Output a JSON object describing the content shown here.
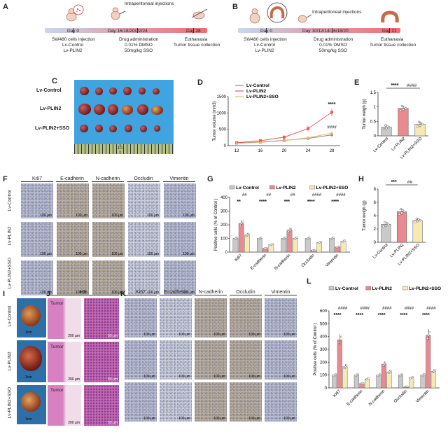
{
  "panels": {
    "A": "A",
    "B": "B",
    "C": "C",
    "D": "D",
    "E": "E",
    "F": "F",
    "G": "G",
    "H": "H",
    "I": "I",
    "J": "J",
    "K": "K",
    "L": "L"
  },
  "timelineA": {
    "injection_label": "Intraperitoneal injections",
    "days": [
      "Day 0",
      "Day 16/18/20/22/24",
      "Day 28"
    ],
    "notes": [
      [
        "SW480 cells injection",
        "Lv-Control",
        "Lv-PLIN2"
      ],
      [
        "Drug administration",
        "0.01% DMSO",
        "50mg/kg SSO"
      ],
      [
        "Euthanasia",
        "Tumor tissue collection"
      ]
    ],
    "colors": [
      "#c7d7ef",
      "#ef6c70"
    ]
  },
  "timelineB": {
    "injection_label": "Intraperitoneal injections",
    "days": [
      "Day 0",
      "Day 10/12/14/16/18/20",
      "Day 21"
    ],
    "notes": [
      [
        "SW480 cells injection",
        "Lv-Control",
        "Lv-PLIN2"
      ],
      [
        "Drug administration",
        "0.01% DMSO",
        "50mg/kg SSO"
      ],
      [
        "Euthanasia",
        "Tumor tissue collection"
      ]
    ]
  },
  "groups": [
    "Lv-Control",
    "Lv-PLIN2",
    "Lv-PLIN2+SSO"
  ],
  "group_colors": [
    "#c9c9c9",
    "#e88a8f",
    "#f6e9b3"
  ],
  "photoC": {
    "rows": [
      "Lv-Control",
      "Lv-PLIN2",
      "Lv-PLIN2+SSO"
    ],
    "ruler_number": "10"
  },
  "markers": [
    "Ki67",
    "E-cadherin",
    "N-cadherin",
    "Occludin",
    "Vimentin"
  ],
  "panelF": {
    "scale": "100 μm"
  },
  "panelI": {
    "scale": "1cm"
  },
  "panelJ": {
    "title": "HE",
    "tumor_label": "Tumor",
    "scale_left": "200 μm",
    "scale_right": "50 μm"
  },
  "panelK": {
    "scale": "100 μm"
  },
  "chart_data": [
    {
      "panel": "D",
      "type": "line",
      "x": [
        12,
        16,
        20,
        24,
        28
      ],
      "ylabel": "Tumor volume (mm3)",
      "ylim": [
        0,
        1500
      ],
      "yticks": [
        0,
        500,
        1000,
        1500
      ],
      "series": [
        {
          "name": "Lv-Control",
          "values": [
            80,
            110,
            160,
            220,
            330
          ],
          "err": [
            15,
            20,
            25,
            35,
            45
          ],
          "color": "#8a8a8a",
          "marker": "circle"
        },
        {
          "name": "Lv-PLIN2",
          "values": [
            90,
            150,
            260,
            520,
            1020
          ],
          "err": [
            20,
            30,
            50,
            90,
            120
          ],
          "color": "#e8575c",
          "marker": "square"
        },
        {
          "name": "Lv-PLIN2+SSO",
          "values": [
            70,
            100,
            150,
            240,
            380
          ],
          "err": [
            15,
            20,
            30,
            40,
            50
          ],
          "color": "#e5b86b",
          "marker": "triangle"
        }
      ],
      "annotations": [
        "****",
        "####"
      ],
      "legend": "top-left"
    },
    {
      "panel": "E",
      "type": "bar",
      "categories": [
        "Lv-Control",
        "Lv-PLIN2",
        "Lv-PLIN2+SSO"
      ],
      "values": [
        0.3,
        0.95,
        0.4
      ],
      "err": [
        0.08,
        0.1,
        0.1
      ],
      "ylabel": "Tumor weigh (g)",
      "ylim": [
        0,
        1.5
      ],
      "yticks": [
        0.0,
        0.5,
        1.0,
        1.5
      ],
      "annotations": [
        "****",
        "####"
      ]
    },
    {
      "panel": "G",
      "type": "bar",
      "categories": [
        "Ki67",
        "E-cadherin",
        "N-cadherin",
        "Occludin",
        "Vimentin"
      ],
      "ylabel": "Positive cells (% of Control )",
      "ylim": [
        0,
        400
      ],
      "yticks": [
        0,
        100,
        200,
        300,
        400
      ],
      "series": [
        {
          "name": "Lv-Control",
          "values": [
            100,
            100,
            100,
            100,
            100
          ]
        },
        {
          "name": "Lv-PLIN2",
          "values": [
            210,
            28,
            160,
            14,
            38
          ]
        },
        {
          "name": "Lv-PLIN2+SSO",
          "values": [
            125,
            55,
            100,
            70,
            80
          ]
        }
      ],
      "annotations_top": [
        "##",
        "##",
        "##",
        "####",
        "####"
      ],
      "annotations_bottom": [
        "**",
        "****",
        "***",
        "****",
        "****"
      ],
      "legend": "top"
    },
    {
      "panel": "H",
      "type": "bar",
      "categories": [
        "Lv-Control",
        "Lv-PLIN2",
        "Lv-PLIN2+SSO"
      ],
      "values": [
        2.7,
        4.6,
        3.3
      ],
      "err": [
        0.4,
        0.5,
        0.3
      ],
      "ylabel": "Tumor weigh (g)",
      "ylim": [
        0,
        8
      ],
      "yticks": [
        0,
        2,
        4,
        6,
        8
      ],
      "annotations": [
        "***",
        "##"
      ]
    },
    {
      "panel": "L",
      "type": "bar",
      "categories": [
        "Ki67",
        "E-cadherin",
        "N-cadherin",
        "Occludin",
        "Vimentin"
      ],
      "ylabel": "Positive cells (% of Control )",
      "ylim": [
        0,
        600
      ],
      "yticks": [
        0,
        100,
        200,
        300,
        400,
        500,
        600
      ],
      "series": [
        {
          "name": "Lv-Control",
          "values": [
            100,
            100,
            100,
            100,
            100
          ]
        },
        {
          "name": "Lv-PLIN2",
          "values": [
            375,
            35,
            185,
            10,
            410
          ]
        },
        {
          "name": "Lv-PLIN2+SSO",
          "values": [
            165,
            70,
            125,
            80,
            130
          ]
        }
      ],
      "annotations_top": [
        "####",
        "####",
        "####",
        "####",
        "####"
      ],
      "annotations_bottom": [
        "****",
        "****",
        "****",
        "****",
        "****"
      ],
      "legend": "top"
    }
  ]
}
